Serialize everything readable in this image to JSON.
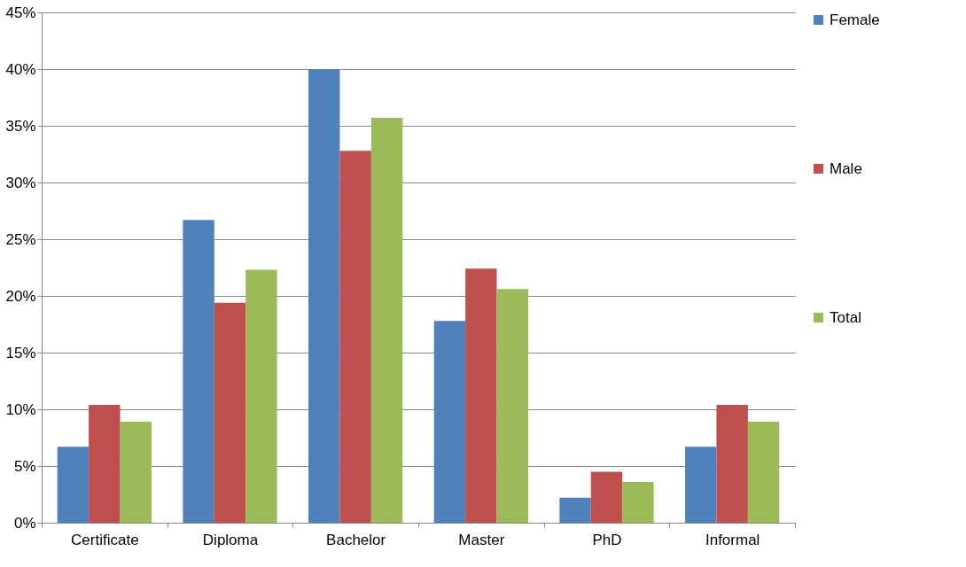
{
  "chart_data": {
    "type": "bar",
    "categories": [
      "Certificate",
      "Diploma",
      "Bachelor",
      "Master",
      "PhD",
      "Informal"
    ],
    "series": [
      {
        "name": "Female",
        "color": "#4f81bd",
        "values": [
          6.7,
          26.7,
          40.0,
          17.8,
          2.2,
          6.7
        ]
      },
      {
        "name": "Male",
        "color": "#c0504d",
        "values": [
          10.4,
          19.4,
          32.8,
          22.4,
          4.5,
          10.4
        ]
      },
      {
        "name": "Total",
        "color": "#9bbb59",
        "values": [
          8.9,
          22.3,
          35.7,
          20.6,
          3.6,
          8.9
        ]
      }
    ],
    "ylim": [
      0,
      45
    ],
    "yticks": [
      {
        "value": 0,
        "label": "0%"
      },
      {
        "value": 5,
        "label": "5%"
      },
      {
        "value": 10,
        "label": "10%"
      },
      {
        "value": 15,
        "label": "15%"
      },
      {
        "value": 20,
        "label": "20%"
      },
      {
        "value": 25,
        "label": "25%"
      },
      {
        "value": 30,
        "label": "30%"
      },
      {
        "value": 35,
        "label": "35%"
      },
      {
        "value": 40,
        "label": "40%"
      },
      {
        "value": 45,
        "label": "45%"
      }
    ],
    "grid": "y",
    "legend": "right"
  }
}
